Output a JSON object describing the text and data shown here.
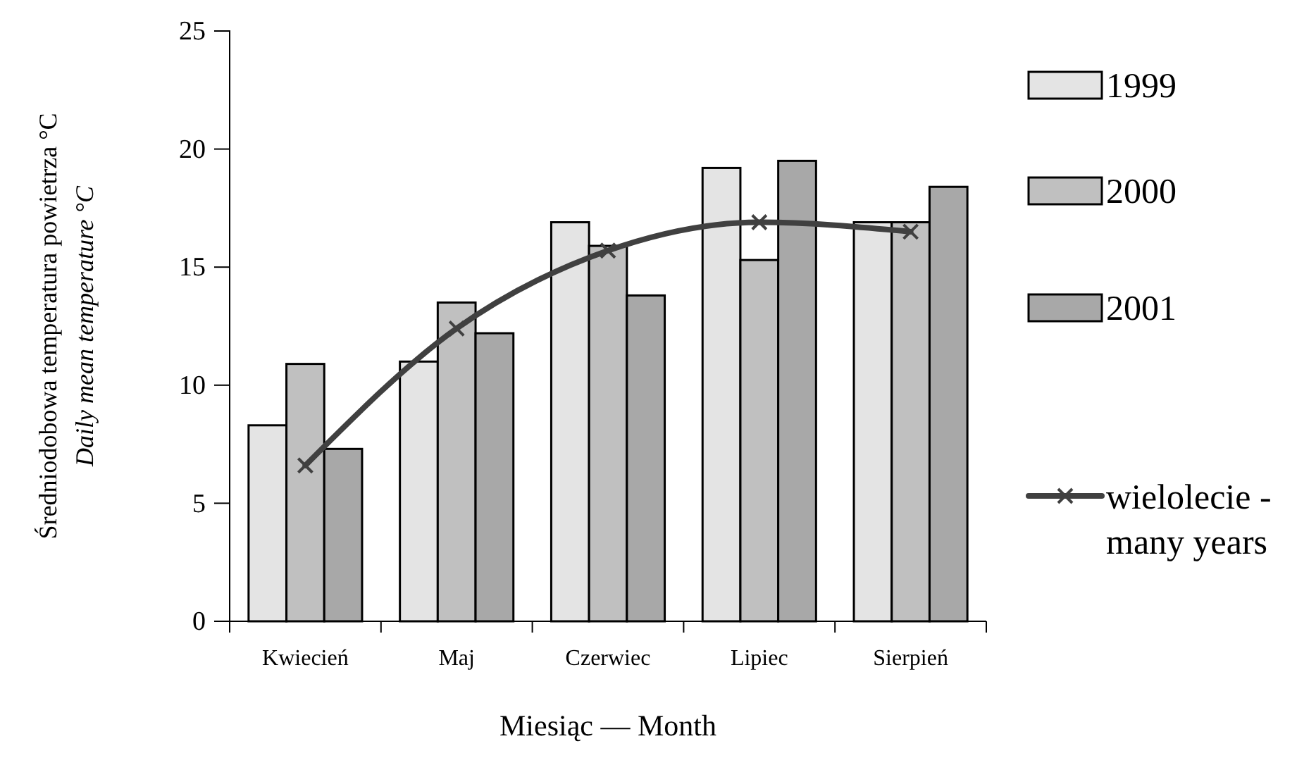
{
  "chart_data": {
    "type": "bar",
    "xlabel": "Miesiąc — Month",
    "ylabel": "Średniodobowa temperatura powietrza °C\nDaily mean temperature  °C",
    "categories": [
      "Kwiecień",
      "Maj",
      "Czerwiec",
      "Lipiec",
      "Sierpień"
    ],
    "series": [
      {
        "name": "1999",
        "color": "#e4e4e4",
        "values": [
          8.3,
          11.0,
          16.9,
          19.2,
          16.9
        ]
      },
      {
        "name": "2000",
        "color": "#c0c0c0",
        "values": [
          10.9,
          13.5,
          15.9,
          15.3,
          16.9
        ]
      },
      {
        "name": "2001",
        "color": "#a8a8a8",
        "values": [
          7.3,
          12.2,
          13.8,
          19.5,
          18.4
        ]
      },
      {
        "name": "wielolecie -\nmany years",
        "type": "line",
        "color": "#404040",
        "marker": "cross",
        "values": [
          6.6,
          12.4,
          15.7,
          16.9,
          16.5
        ]
      }
    ],
    "ylim": [
      0,
      25
    ],
    "yticks": [
      0,
      5,
      10,
      15,
      20,
      25
    ],
    "grid": false,
    "legend": "right"
  }
}
